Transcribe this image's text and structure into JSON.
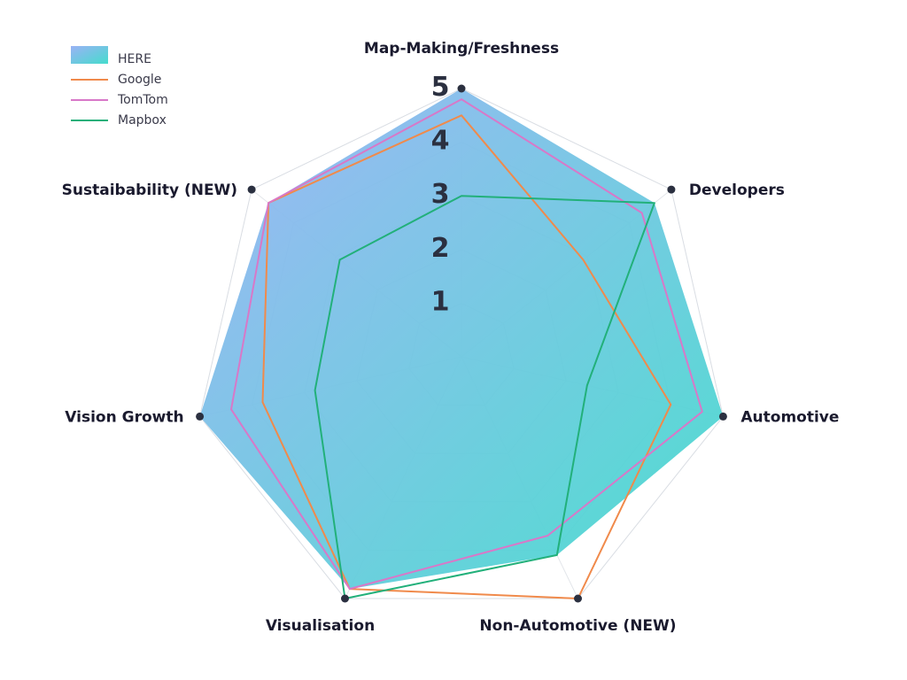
{
  "chart_data": {
    "type": "radar",
    "axes": [
      "Map-Making/Freshness",
      "Developers",
      "Automotive",
      "Non-Automotive (NEW)",
      "Visualisation",
      "Vision Growth",
      "Sustaibability (NEW)"
    ],
    "range": [
      0,
      5
    ],
    "ticks": [
      "1",
      "2",
      "3",
      "4",
      "5"
    ],
    "grid": true,
    "legend_position": "top-left",
    "series": [
      {
        "name": "HERE",
        "style": "filled-area",
        "gradient": [
          "#9ab2f5",
          "#45dccd"
        ],
        "values": [
          5.0,
          4.6,
          5.0,
          4.1,
          4.8,
          5.0,
          4.6
        ]
      },
      {
        "name": "Google",
        "style": "line",
        "color": "#f08a4b",
        "values": [
          4.5,
          2.9,
          4.0,
          5.0,
          4.8,
          3.8,
          4.6
        ]
      },
      {
        "name": "TomTom",
        "style": "line",
        "color": "#d878c8",
        "values": [
          4.8,
          4.3,
          4.6,
          3.7,
          4.8,
          4.4,
          4.6
        ]
      },
      {
        "name": "Mapbox",
        "style": "line",
        "color": "#22b07a",
        "values": [
          3.0,
          4.6,
          2.4,
          4.1,
          5.0,
          2.8,
          2.9
        ]
      }
    ]
  }
}
